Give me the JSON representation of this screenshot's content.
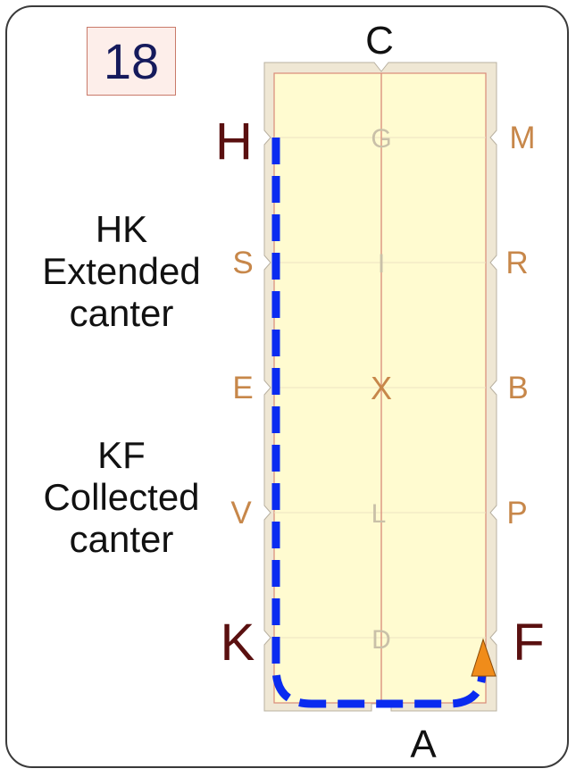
{
  "card": {
    "number": "18",
    "notes": [
      {
        "lines": [
          "HK",
          "Extended",
          "canter"
        ]
      },
      {
        "lines": [
          "KF",
          "Collected",
          "canter"
        ]
      }
    ]
  },
  "arena": {
    "letters": {
      "C": "C",
      "A": "A",
      "H": "H",
      "K": "K",
      "F": "F",
      "M": "M",
      "R": "R",
      "B": "B",
      "P": "P",
      "S": "S",
      "E": "E",
      "V": "V",
      "G": "G",
      "I": "I",
      "X": "X",
      "L": "L",
      "D": "D"
    },
    "colors": {
      "surface": "#fffbd0",
      "border": "#efe7d4",
      "centerline": "#d98a78",
      "route": "#0a2bf0",
      "marker": "#f08c1a",
      "corner_letter": "#5a1010",
      "side_letter": "#c7874a",
      "center_letter": "#c9c0a8"
    },
    "route": "H-K-A-F dashed",
    "marker": "orange-triangle-at-F"
  }
}
